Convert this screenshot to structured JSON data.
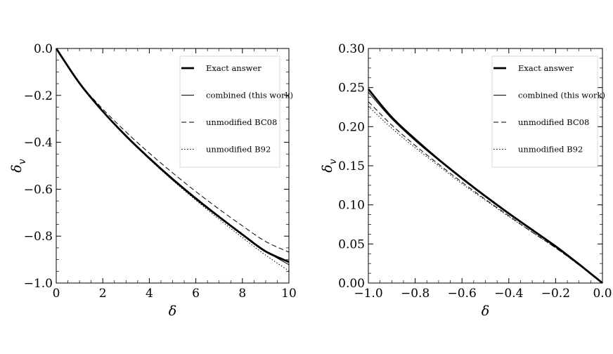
{
  "chart_data": [
    {
      "type": "line",
      "xlabel": "δ",
      "ylabel": "δ_v",
      "xlim": [
        0,
        10
      ],
      "ylim": [
        -1.0,
        0.0
      ],
      "xticks": [
        0,
        2,
        4,
        6,
        8,
        10
      ],
      "xtick_labels": [
        "0",
        "2",
        "4",
        "6",
        "8",
        "10"
      ],
      "yticks": [
        0.0,
        -0.2,
        -0.4,
        -0.6,
        -0.8,
        -1.0
      ],
      "ytick_labels": [
        "0.0",
        "−0.2",
        "−0.4",
        "−0.6",
        "−0.8",
        "−1.0"
      ],
      "legend_position": "top-right",
      "x": [
        0,
        1,
        2,
        3,
        4,
        5,
        6,
        7,
        8,
        9,
        10
      ],
      "series": [
        {
          "name": "Exact answer",
          "style": "thick",
          "values": [
            0.0,
            -0.148,
            -0.268,
            -0.373,
            -0.468,
            -0.557,
            -0.64,
            -0.718,
            -0.793,
            -0.865,
            -0.91
          ]
        },
        {
          "name": "combined (this work)",
          "style": "thin",
          "values": [
            0.0,
            -0.148,
            -0.266,
            -0.37,
            -0.465,
            -0.553,
            -0.636,
            -0.715,
            -0.791,
            -0.864,
            -0.922
          ]
        },
        {
          "name": "unmodified BC08",
          "style": "dashed",
          "values": [
            0.0,
            -0.146,
            -0.258,
            -0.356,
            -0.446,
            -0.53,
            -0.61,
            -0.685,
            -0.756,
            -0.823,
            -0.868
          ]
        },
        {
          "name": "unmodified B92",
          "style": "dotted",
          "values": [
            0.0,
            -0.15,
            -0.27,
            -0.376,
            -0.472,
            -0.562,
            -0.647,
            -0.728,
            -0.806,
            -0.881,
            -0.948
          ]
        }
      ]
    },
    {
      "type": "line",
      "xlabel": "δ",
      "ylabel": "δ_v",
      "xlim": [
        -1.0,
        0.0
      ],
      "ylim": [
        0.0,
        0.3
      ],
      "xticks": [
        -1.0,
        -0.8,
        -0.6,
        -0.4,
        -0.2,
        0.0
      ],
      "xtick_labels": [
        "−1.0",
        "−0.8",
        "−0.6",
        "−0.4",
        "−0.2",
        "0.0"
      ],
      "yticks": [
        0.0,
        0.05,
        0.1,
        0.15,
        0.2,
        0.25,
        0.3
      ],
      "ytick_labels": [
        "0.00",
        "0.05",
        "0.10",
        "0.15",
        "0.20",
        "0.25",
        "0.30"
      ],
      "legend_position": "top-right",
      "x": [
        -1.0,
        -0.9,
        -0.8,
        -0.7,
        -0.6,
        -0.5,
        -0.4,
        -0.3,
        -0.2,
        -0.1,
        0.0
      ],
      "series": [
        {
          "name": "Exact answer",
          "style": "thick",
          "values": [
            0.248,
            0.212,
            0.184,
            0.158,
            0.134,
            0.111,
            0.089,
            0.068,
            0.047,
            0.024,
            0.0
          ]
        },
        {
          "name": "combined (this work)",
          "style": "thin",
          "values": [
            0.244,
            0.21,
            0.182,
            0.157,
            0.133,
            0.11,
            0.088,
            0.067,
            0.046,
            0.024,
            0.0
          ]
        },
        {
          "name": "unmodified BC08",
          "style": "dashed",
          "values": [
            0.232,
            0.202,
            0.176,
            0.152,
            0.129,
            0.107,
            0.086,
            0.065,
            0.045,
            0.023,
            0.0
          ]
        },
        {
          "name": "unmodified B92",
          "style": "dotted",
          "values": [
            0.226,
            0.198,
            0.173,
            0.15,
            0.127,
            0.106,
            0.085,
            0.065,
            0.045,
            0.023,
            0.0
          ]
        }
      ]
    }
  ]
}
